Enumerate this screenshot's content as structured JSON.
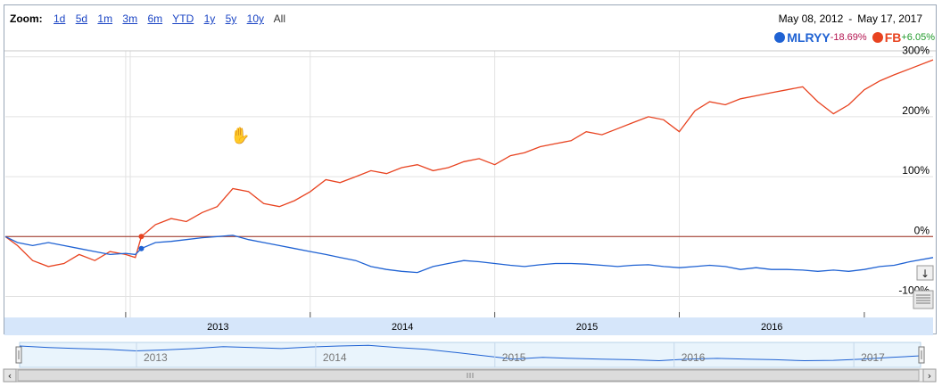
{
  "zoom": {
    "label": "Zoom:",
    "options": [
      "1d",
      "5d",
      "1m",
      "3m",
      "6m",
      "YTD",
      "1y",
      "5y",
      "10y"
    ],
    "active": "All"
  },
  "range": {
    "start": "May 08, 2012",
    "separator": "-",
    "end": "May 17, 2017"
  },
  "legend": [
    {
      "name": "MLRYY",
      "change": "-18.69%",
      "color": "#1f62d3",
      "change_color": "#b3124f"
    },
    {
      "name": "FB",
      "change": "+6.05%",
      "color": "#e84320",
      "change_color": "#209a2a"
    }
  ],
  "chart_data": {
    "type": "line",
    "x_range": [
      "2012-05-08",
      "2017-05-17"
    ],
    "y_range": [
      -135,
      310
    ],
    "ytick_labels": [
      "300%",
      "200%",
      "100%",
      "0%",
      "-100%"
    ],
    "ytick_values": [
      300,
      200,
      100,
      0,
      -100
    ],
    "x_tick_labels": [
      "2013",
      "2014",
      "2015",
      "2016"
    ],
    "navigator_tick_labels": [
      "2013",
      "2014",
      "2015",
      "2016",
      "2017"
    ],
    "grid": true,
    "legend_position": "top-right",
    "series": [
      {
        "name": "FB",
        "color": "#e84320",
        "x": [
          "2012-05-08",
          "2012-06-01",
          "2012-07-01",
          "2012-08-01",
          "2012-09-01",
          "2012-10-01",
          "2012-11-01",
          "2012-12-01",
          "2013-01-01",
          "2013-01-20",
          "2013-02-01",
          "2013-03-01",
          "2013-04-01",
          "2013-05-01",
          "2013-06-01",
          "2013-07-01",
          "2013-08-01",
          "2013-09-01",
          "2013-10-01",
          "2013-11-01",
          "2013-12-01",
          "2014-01-01",
          "2014-02-01",
          "2014-03-01",
          "2014-04-01",
          "2014-05-01",
          "2014-06-01",
          "2014-07-01",
          "2014-08-01",
          "2014-09-01",
          "2014-10-01",
          "2014-11-01",
          "2014-12-01",
          "2015-01-01",
          "2015-02-01",
          "2015-03-01",
          "2015-04-01",
          "2015-05-01",
          "2015-06-01",
          "2015-07-01",
          "2015-08-01",
          "2015-09-01",
          "2015-10-01",
          "2015-11-01",
          "2015-12-01",
          "2016-01-01",
          "2016-02-01",
          "2016-03-01",
          "2016-04-01",
          "2016-05-01",
          "2016-06-01",
          "2016-07-01",
          "2016-08-01",
          "2016-09-01",
          "2016-10-01",
          "2016-11-01",
          "2016-12-01",
          "2017-01-01",
          "2017-02-01",
          "2017-03-01",
          "2017-04-01",
          "2017-05-17"
        ],
        "values": [
          0,
          -15,
          -40,
          -50,
          -45,
          -30,
          -40,
          -25,
          -30,
          -35,
          0,
          20,
          30,
          25,
          40,
          50,
          80,
          75,
          55,
          50,
          60,
          75,
          95,
          90,
          100,
          110,
          105,
          115,
          120,
          110,
          115,
          125,
          130,
          120,
          135,
          140,
          150,
          155,
          160,
          175,
          170,
          180,
          190,
          200,
          195,
          175,
          210,
          225,
          220,
          230,
          235,
          240,
          245,
          250,
          225,
          205,
          220,
          245,
          260,
          270,
          280,
          295
        ]
      },
      {
        "name": "MLRYY",
        "color": "#1f62d3",
        "x": [
          "2012-05-08",
          "2012-06-01",
          "2012-07-01",
          "2012-08-01",
          "2012-09-01",
          "2012-10-01",
          "2012-11-01",
          "2012-12-01",
          "2013-01-01",
          "2013-01-20",
          "2013-02-01",
          "2013-03-01",
          "2013-04-01",
          "2013-05-01",
          "2013-06-01",
          "2013-07-01",
          "2013-08-01",
          "2013-09-01",
          "2013-10-01",
          "2013-11-01",
          "2013-12-01",
          "2014-01-01",
          "2014-02-01",
          "2014-03-01",
          "2014-04-01",
          "2014-05-01",
          "2014-06-01",
          "2014-07-01",
          "2014-08-01",
          "2014-09-01",
          "2014-10-01",
          "2014-11-01",
          "2014-12-01",
          "2015-01-01",
          "2015-02-01",
          "2015-03-01",
          "2015-04-01",
          "2015-05-01",
          "2015-06-01",
          "2015-07-01",
          "2015-08-01",
          "2015-09-01",
          "2015-10-01",
          "2015-11-01",
          "2015-12-01",
          "2016-01-01",
          "2016-02-01",
          "2016-03-01",
          "2016-04-01",
          "2016-05-01",
          "2016-06-01",
          "2016-07-01",
          "2016-08-01",
          "2016-09-01",
          "2016-10-01",
          "2016-11-01",
          "2016-12-01",
          "2017-01-01",
          "2017-02-01",
          "2017-03-01",
          "2017-04-01",
          "2017-05-17"
        ],
        "values": [
          0,
          -10,
          -15,
          -10,
          -15,
          -20,
          -25,
          -30,
          -28,
          -30,
          -20,
          -10,
          -8,
          -5,
          -2,
          0,
          2,
          -5,
          -10,
          -15,
          -20,
          -25,
          -30,
          -35,
          -40,
          -50,
          -55,
          -58,
          -60,
          -50,
          -45,
          -40,
          -42,
          -45,
          -48,
          -50,
          -47,
          -45,
          -45,
          -46,
          -48,
          -50,
          -48,
          -47,
          -50,
          -52,
          -50,
          -48,
          -50,
          -55,
          -52,
          -55,
          -55,
          -56,
          -58,
          -56,
          -58,
          -55,
          -50,
          -48,
          -42,
          -35
        ]
      }
    ]
  },
  "navigator": {
    "values": [
      0,
      -5,
      -8,
      -10,
      -15,
      -12,
      -8,
      -2,
      -5,
      -8,
      -3,
      0,
      2,
      -5,
      -10,
      -20,
      -30,
      -40,
      -35,
      -38,
      -40,
      -42,
      -45,
      -40,
      -38,
      -40,
      -42,
      -45,
      -44,
      -40,
      -35,
      -30
    ]
  }
}
